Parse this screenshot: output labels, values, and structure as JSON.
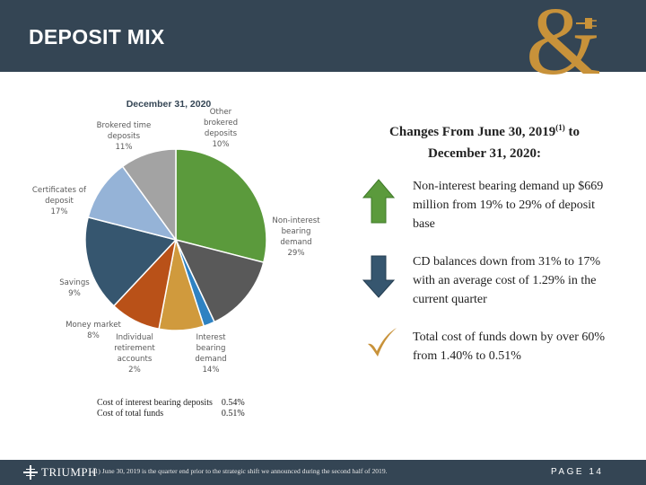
{
  "header": {
    "title": "DEPOSIT MIX",
    "logo_icon": "ampersand-plug-icon"
  },
  "chart_data": {
    "type": "pie",
    "title": "December 31, 2020",
    "slices": [
      {
        "label": "Non-interest bearing demand",
        "label_lines": [
          "Non-interest",
          "bearing",
          "demand",
          "29%"
        ],
        "value": 29,
        "color": "#5b9a3c"
      },
      {
        "label": "Interest bearing demand",
        "label_lines": [
          "Interest",
          "bearing",
          "demand",
          "14%"
        ],
        "value": 14,
        "color": "#595959"
      },
      {
        "label": "Individual retirement accounts",
        "label_lines": [
          "Individual",
          "retirement",
          "accounts",
          "2%"
        ],
        "value": 2,
        "color": "#2e82c2"
      },
      {
        "label": "Money market",
        "label_lines": [
          "Money market",
          "8%"
        ],
        "value": 8,
        "color": "#d09a3d"
      },
      {
        "label": "Savings",
        "label_lines": [
          "Savings",
          "9%"
        ],
        "value": 9,
        "color": "#b95118"
      },
      {
        "label": "Certificates of deposit",
        "label_lines": [
          "Certificates of",
          "deposit",
          "17%"
        ],
        "value": 17,
        "color": "#36566f"
      },
      {
        "label": "Brokered time deposits",
        "label_lines": [
          "Brokered time",
          "deposits",
          "11%"
        ],
        "value": 11,
        "color": "#95b3d7"
      },
      {
        "label": "Other brokered deposits",
        "label_lines": [
          "Other",
          "brokered",
          "deposits",
          "10%"
        ],
        "value": 10,
        "color": "#a3a3a3"
      }
    ]
  },
  "cost_table": [
    {
      "label": "Cost of interest bearing deposits",
      "value": "0.54%"
    },
    {
      "label": "Cost of total funds",
      "value": "0.51%"
    }
  ],
  "changes": {
    "title_line1": "Changes From June 30, 2019",
    "title_sup": "(1)",
    "title_to": " to",
    "title_line2": "December 31, 2020:",
    "bullets": [
      {
        "icon": "green-up-arrow-icon",
        "color": "#5b9a3c",
        "text": "Non-interest bearing demand up $669 million from 19% to 29% of deposit base"
      },
      {
        "icon": "blue-down-arrow-icon",
        "color": "#36566f",
        "text": "CD balances down from 31% to 17% with an average cost of 1.29% in the current quarter"
      },
      {
        "icon": "gold-checkmark-icon",
        "color": "#c8923a",
        "text": "Total cost of funds down by over 60% from 1.40% to 0.51%"
      }
    ]
  },
  "footer": {
    "brand": "TRIUMPH",
    "note": "(1) June 30, 2019 is the quarter end prior to the strategic shift we announced during the second half of 2019.",
    "page": "PAGE 14"
  }
}
